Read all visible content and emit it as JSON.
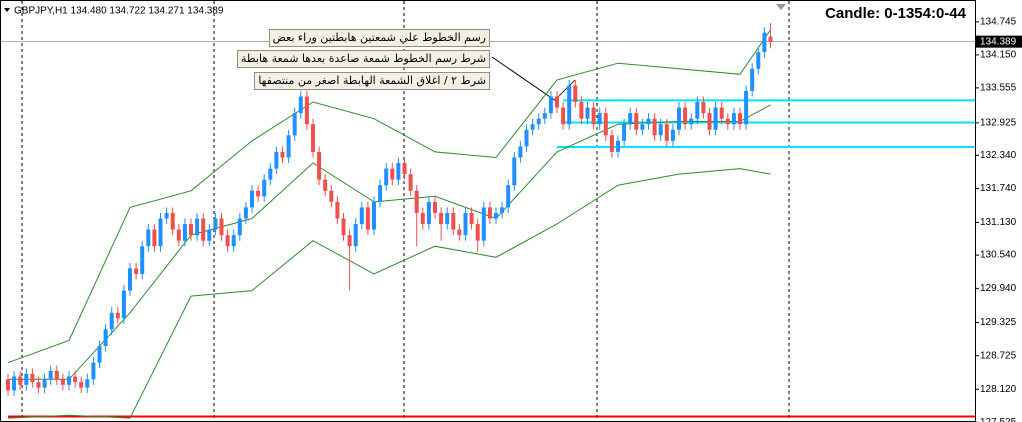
{
  "chart_data": {
    "type": "candlestick",
    "title": "GBPJPY,H1  134.480 134.722 134.271 134.389",
    "candle_info": "Candle:  0-1354:0-44",
    "notes": [
      "رسم الخطوط علي شمعتين هابطتين وراء بعض",
      "شرط رسم الخطوط شمعة صاعدة بعدها شمعة هابطة",
      "شرط ٢ / اغلاق الشمعة الهابطة اصغر من منتصفها"
    ],
    "up_color": "#1e90ff",
    "down_color": "#f0504c",
    "open": [
      128.3,
      128.1,
      128.35,
      128.2,
      128.4,
      128.25,
      128.15,
      128.3,
      128.45,
      128.3,
      128.2,
      128.35,
      128.25,
      128.15,
      128.3,
      128.6,
      128.9,
      129.2,
      129.5,
      129.4,
      129.9,
      130.3,
      130.2,
      130.7,
      131.0,
      130.7,
      131.2,
      131.3,
      131.0,
      130.8,
      131.1,
      130.9,
      131.2,
      130.8,
      131.0,
      131.2,
      130.9,
      130.7,
      130.9,
      131.2,
      131.4,
      131.7,
      131.6,
      131.9,
      132.1,
      132.4,
      132.3,
      132.7,
      133.1,
      133.4,
      132.9,
      132.4,
      131.9,
      131.7,
      131.5,
      131.2,
      130.9,
      130.7,
      131.1,
      131.4,
      131.0,
      131.5,
      131.8,
      132.1,
      131.9,
      132.2,
      132.0,
      131.7,
      131.3,
      131.1,
      131.5,
      131.3,
      131.1,
      131.3,
      131.0,
      130.9,
      131.3,
      131.1,
      130.8,
      131.4,
      131.2,
      131.3,
      131.4,
      131.8,
      132.3,
      132.5,
      132.8,
      132.9,
      133.0,
      133.1,
      133.4,
      133.2,
      132.9,
      133.6,
      133.3,
      133.0,
      133.2,
      132.9,
      133.1,
      132.7,
      132.4,
      132.6,
      132.9,
      133.1,
      132.8,
      132.9,
      133.0,
      132.7,
      132.9,
      132.6,
      132.8,
      133.2,
      132.9,
      133.0,
      133.3,
      133.1,
      132.8,
      133.2,
      133.0,
      132.9,
      133.1,
      132.9,
      133.5,
      133.9,
      134.2,
      134.48
    ],
    "high": [
      128.4,
      128.45,
      128.45,
      128.5,
      128.5,
      128.35,
      128.4,
      128.55,
      128.55,
      128.4,
      128.45,
      128.45,
      128.35,
      128.4,
      128.7,
      129.0,
      129.3,
      129.6,
      129.6,
      130.0,
      130.4,
      130.4,
      130.8,
      131.1,
      131.1,
      131.3,
      131.4,
      131.4,
      131.1,
      131.2,
      131.2,
      131.3,
      131.3,
      131.1,
      131.3,
      131.3,
      131.0,
      131.0,
      131.3,
      131.5,
      131.8,
      131.8,
      132.0,
      132.2,
      132.5,
      132.5,
      132.8,
      133.2,
      133.5,
      133.5,
      133.0,
      132.5,
      132.0,
      131.8,
      131.6,
      131.3,
      131.0,
      131.2,
      131.5,
      131.5,
      131.6,
      131.9,
      132.2,
      132.2,
      132.3,
      132.3,
      132.1,
      131.8,
      131.4,
      131.6,
      131.6,
      131.4,
      131.4,
      131.4,
      131.1,
      131.4,
      131.4,
      131.2,
      131.5,
      131.5,
      131.4,
      131.5,
      131.9,
      132.4,
      132.6,
      132.9,
      133.0,
      133.1,
      133.2,
      133.5,
      133.5,
      133.3,
      133.7,
      133.7,
      133.4,
      133.3,
      133.3,
      133.2,
      133.2,
      132.8,
      132.7,
      133.0,
      133.2,
      133.2,
      133.0,
      133.1,
      133.1,
      133.0,
      133.0,
      132.9,
      133.3,
      133.3,
      133.1,
      133.4,
      133.4,
      133.2,
      133.3,
      133.3,
      133.1,
      133.2,
      133.2,
      133.6,
      134.0,
      134.3,
      134.65,
      134.722
    ],
    "low": [
      128.0,
      128.0,
      128.1,
      128.1,
      128.15,
      128.05,
      128.05,
      128.2,
      128.2,
      128.1,
      128.1,
      128.15,
      128.05,
      128.05,
      128.2,
      128.5,
      128.8,
      129.1,
      129.3,
      129.3,
      129.8,
      130.1,
      130.1,
      130.6,
      130.6,
      130.6,
      131.1,
      130.9,
      130.7,
      130.7,
      130.8,
      130.8,
      130.7,
      130.7,
      130.9,
      130.8,
      130.6,
      130.6,
      130.8,
      131.1,
      131.3,
      131.5,
      131.5,
      131.8,
      132.0,
      132.2,
      132.2,
      132.6,
      133.0,
      132.8,
      132.3,
      131.8,
      131.6,
      131.4,
      131.1,
      130.8,
      129.9,
      130.6,
      131.0,
      130.9,
      130.9,
      131.4,
      131.7,
      131.8,
      131.8,
      131.9,
      131.6,
      130.7,
      131.0,
      131.0,
      131.2,
      130.8,
      131.0,
      130.9,
      130.8,
      130.8,
      131.0,
      130.6,
      130.7,
      131.1,
      131.1,
      131.2,
      131.3,
      131.7,
      132.2,
      132.4,
      132.7,
      132.8,
      132.9,
      133.0,
      133.1,
      132.8,
      132.8,
      133.2,
      132.9,
      132.9,
      132.8,
      132.8,
      132.6,
      132.3,
      132.3,
      132.5,
      132.8,
      132.7,
      132.7,
      132.8,
      132.6,
      132.6,
      132.5,
      132.5,
      132.7,
      132.8,
      132.8,
      132.9,
      133.0,
      132.7,
      132.7,
      132.9,
      132.8,
      132.8,
      132.8,
      132.8,
      133.4,
      133.8,
      134.1,
      134.271
    ],
    "close": [
      128.1,
      128.35,
      128.2,
      128.4,
      128.25,
      128.15,
      128.3,
      128.45,
      128.3,
      128.2,
      128.35,
      128.25,
      128.15,
      128.3,
      128.6,
      128.9,
      129.2,
      129.5,
      129.4,
      129.9,
      130.3,
      130.2,
      130.7,
      131.0,
      130.7,
      131.2,
      131.3,
      131.0,
      130.8,
      131.1,
      130.9,
      131.2,
      130.8,
      131.0,
      131.2,
      130.9,
      130.7,
      130.9,
      131.2,
      131.4,
      131.7,
      131.6,
      131.9,
      132.1,
      132.4,
      132.3,
      132.7,
      133.1,
      133.4,
      132.9,
      132.4,
      131.9,
      131.7,
      131.5,
      131.2,
      130.9,
      130.7,
      131.1,
      131.4,
      131.0,
      131.5,
      131.8,
      132.1,
      131.9,
      132.2,
      132.0,
      131.7,
      131.3,
      131.1,
      131.5,
      131.3,
      131.1,
      131.3,
      131.0,
      130.9,
      131.3,
      131.1,
      130.8,
      131.4,
      131.2,
      131.3,
      131.4,
      131.8,
      132.3,
      132.5,
      132.8,
      132.9,
      133.0,
      133.1,
      133.4,
      133.2,
      132.9,
      133.6,
      133.3,
      133.0,
      133.2,
      132.9,
      133.1,
      132.7,
      132.4,
      132.6,
      132.9,
      133.1,
      132.8,
      132.9,
      133.0,
      132.7,
      132.9,
      132.6,
      132.8,
      133.2,
      132.9,
      133.0,
      133.3,
      133.1,
      132.8,
      133.2,
      133.0,
      132.9,
      133.1,
      132.9,
      133.5,
      133.9,
      134.2,
      134.55,
      134.389
    ],
    "bands": [
      {
        "color": "#2e8b2e",
        "x": [
          0,
          10,
          20,
          30,
          40,
          50,
          60,
          70,
          80,
          90,
          100,
          110,
          120,
          125
        ],
        "values": [
          128.6,
          129.0,
          131.4,
          131.7,
          132.6,
          133.3,
          133.0,
          132.4,
          132.3,
          133.7,
          134.0,
          133.9,
          133.8,
          134.6
        ]
      },
      {
        "color": "#2e8b2e",
        "x": [
          0,
          10,
          20,
          30,
          40,
          50,
          60,
          70,
          80,
          90,
          100,
          110,
          120,
          125
        ],
        "values": [
          128.3,
          128.3,
          129.5,
          130.9,
          131.2,
          132.2,
          131.5,
          131.6,
          131.2,
          132.4,
          132.9,
          132.95,
          132.95,
          133.25
        ]
      },
      {
        "color": "#2e8b2e",
        "x": [
          0,
          10,
          20,
          30,
          40,
          50,
          60,
          70,
          80,
          90,
          100,
          110,
          120,
          125
        ],
        "values": [
          127.6,
          127.65,
          127.6,
          129.8,
          129.9,
          130.8,
          130.2,
          130.7,
          130.5,
          131.1,
          131.8,
          132.0,
          132.1,
          132.0
        ]
      }
    ],
    "hlines": [
      {
        "value": 127.63,
        "color": "#ff0000",
        "x_start": 0
      },
      {
        "value": 133.33,
        "color": "#00e5ff",
        "x_start": 91
      },
      {
        "value": 132.93,
        "color": "#00e5ff",
        "x_start": 91
      },
      {
        "value": 132.49,
        "color": "#00e5ff",
        "x_start": 90
      }
    ],
    "current_price": 134.389,
    "ylim": [
      127.53,
      135.05
    ],
    "yticks": [
      {
        "value": 134.745,
        "label": "134.745"
      },
      {
        "value": 134.15,
        "label": "134.150"
      },
      {
        "value": 133.555,
        "label": "133.555"
      },
      {
        "value": 132.925,
        "label": "132.925"
      },
      {
        "value": 132.34,
        "label": "132.340"
      },
      {
        "value": 131.74,
        "label": "131.740"
      },
      {
        "value": 131.13,
        "label": "131.130"
      },
      {
        "value": 130.54,
        "label": "130.540"
      },
      {
        "value": 129.94,
        "label": "129.940"
      },
      {
        "value": 129.325,
        "label": "129.325"
      },
      {
        "value": 128.725,
        "label": "128.725"
      },
      {
        "value": 128.12,
        "label": "128.120"
      },
      {
        "value": 127.525,
        "label": "127.525"
      }
    ]
  }
}
